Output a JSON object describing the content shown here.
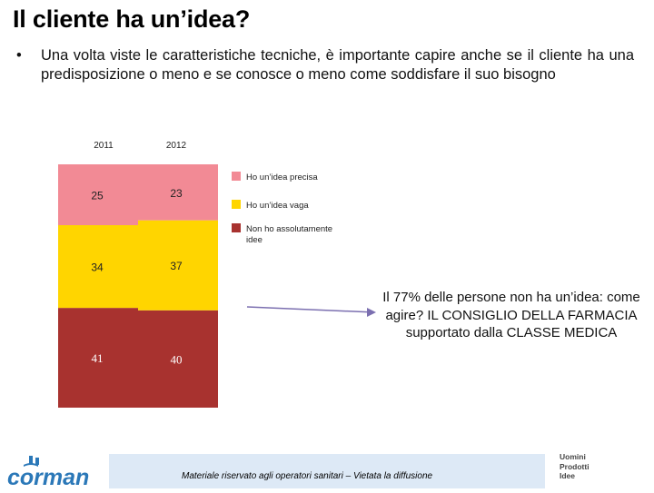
{
  "title": "Il cliente ha un’idea?",
  "bullet_text": "Una volta viste le caratteristiche tecniche, è importante capire anche se il cliente ha una predisposizione o meno e se conosce o meno come soddisfare il suo bisogno",
  "callout": "Il 77% delle persone non ha un’idea: come agire? IL CONSIGLIO DELLA FARMACIA supportato dalla CLASSE MEDICA",
  "footer_note": "Materiale riservato agli operatori sanitari – Vietata la diffusione",
  "logo_text": "corman",
  "brand_lines": [
    "Uomini",
    "Prodotti",
    "Idee"
  ],
  "colors": {
    "precise": "#f28a95",
    "vague": "#ffd500",
    "none": "#a8322f",
    "footer_band": "#dde9f6",
    "logo": "#2b78b8",
    "arrow": "#7b6fb0"
  },
  "chart_data": {
    "type": "bar",
    "stacked": true,
    "percent_stacked": true,
    "categories": [
      "2011",
      "2012"
    ],
    "series": [
      {
        "name": "Non ho assolutamente idee",
        "values": [
          41,
          40
        ],
        "color": "#a8322f"
      },
      {
        "name": "Ho un’idea vaga",
        "values": [
          34,
          37
        ],
        "color": "#ffd500"
      },
      {
        "name": "Ho un’idea precisa",
        "values": [
          25,
          23
        ],
        "color": "#f28a95"
      }
    ],
    "legend_order": [
      "Ho un’idea precisa",
      "Ho un’idea vaga",
      "Non ho assolutamente idee"
    ],
    "legend_position": "right",
    "category_labels_position": "top",
    "ylim": [
      0,
      100
    ]
  }
}
